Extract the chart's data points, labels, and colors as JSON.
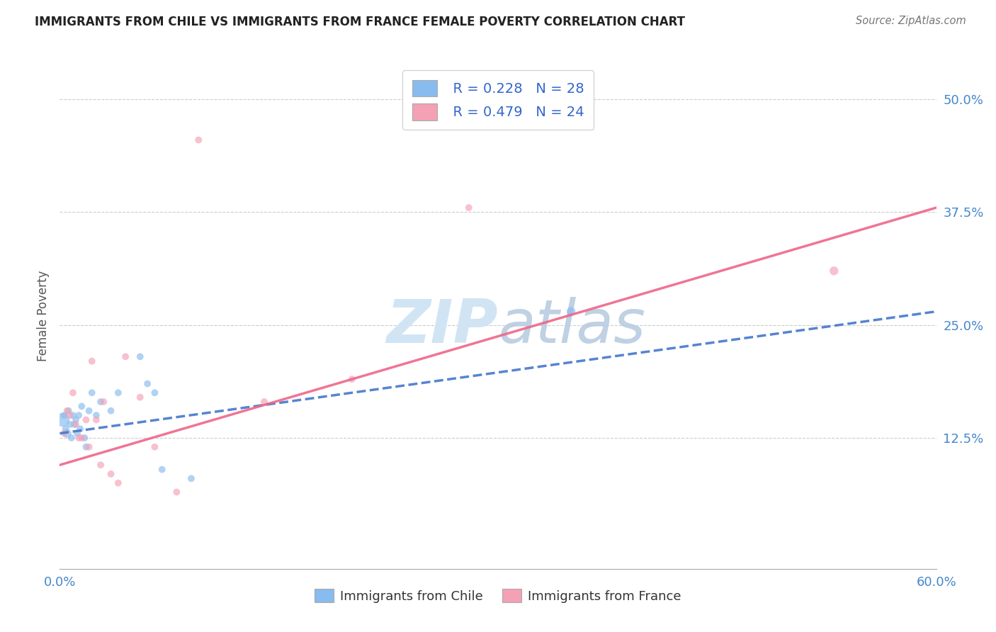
{
  "title": "IMMIGRANTS FROM CHILE VS IMMIGRANTS FROM FRANCE FEMALE POVERTY CORRELATION CHART",
  "source_text": "Source: ZipAtlas.com",
  "ylabel": "Female Poverty",
  "xlim": [
    0.0,
    0.6
  ],
  "ylim": [
    -0.02,
    0.54
  ],
  "xticks": [
    0.0,
    0.1,
    0.2,
    0.3,
    0.4,
    0.5,
    0.6
  ],
  "xtick_labels": [
    "0.0%",
    "",
    "",
    "",
    "",
    "",
    "60.0%"
  ],
  "ytick_positions": [
    0.125,
    0.25,
    0.375,
    0.5
  ],
  "ytick_labels": [
    "12.5%",
    "25.0%",
    "37.5%",
    "50.0%"
  ],
  "background_color": "#ffffff",
  "grid_color": "#cccccc",
  "chile_color": "#88bbee",
  "france_color": "#f4a0b5",
  "chile_line_color": "#4477cc",
  "france_line_color": "#ee6688",
  "watermark_color": "#d0e4f4",
  "legend_R_chile": "R = 0.228",
  "legend_N_chile": "N = 28",
  "legend_R_france": "R = 0.479",
  "legend_N_france": "N = 24",
  "chile_x": [
    0.002,
    0.003,
    0.004,
    0.005,
    0.006,
    0.007,
    0.008,
    0.009,
    0.01,
    0.011,
    0.012,
    0.013,
    0.014,
    0.015,
    0.017,
    0.018,
    0.02,
    0.022,
    0.025,
    0.028,
    0.035,
    0.04,
    0.055,
    0.06,
    0.065,
    0.07,
    0.09,
    0.35
  ],
  "chile_y": [
    0.145,
    0.15,
    0.135,
    0.13,
    0.155,
    0.14,
    0.125,
    0.15,
    0.14,
    0.145,
    0.13,
    0.15,
    0.135,
    0.16,
    0.125,
    0.115,
    0.155,
    0.175,
    0.15,
    0.165,
    0.155,
    0.175,
    0.215,
    0.185,
    0.175,
    0.09,
    0.08,
    0.265
  ],
  "chile_sizes": [
    200,
    50,
    50,
    80,
    50,
    50,
    50,
    50,
    50,
    50,
    50,
    50,
    50,
    50,
    50,
    50,
    50,
    50,
    50,
    50,
    50,
    50,
    50,
    50,
    50,
    50,
    50,
    80
  ],
  "france_x": [
    0.003,
    0.005,
    0.007,
    0.009,
    0.011,
    0.013,
    0.015,
    0.018,
    0.02,
    0.022,
    0.025,
    0.028,
    0.03,
    0.035,
    0.04,
    0.045,
    0.055,
    0.065,
    0.08,
    0.095,
    0.14,
    0.2,
    0.28,
    0.53
  ],
  "france_y": [
    0.13,
    0.155,
    0.15,
    0.175,
    0.14,
    0.125,
    0.125,
    0.145,
    0.115,
    0.21,
    0.145,
    0.095,
    0.165,
    0.085,
    0.075,
    0.215,
    0.17,
    0.115,
    0.065,
    0.455,
    0.165,
    0.19,
    0.38,
    0.31
  ],
  "france_sizes": [
    50,
    50,
    50,
    50,
    50,
    50,
    50,
    50,
    50,
    50,
    50,
    50,
    50,
    50,
    50,
    50,
    50,
    50,
    50,
    50,
    50,
    50,
    50,
    80
  ],
  "chile_line_x0": 0.0,
  "chile_line_x1": 0.6,
  "chile_line_y0": 0.13,
  "chile_line_y1": 0.265,
  "france_line_x0": 0.0,
  "france_line_x1": 0.6,
  "france_line_y0": 0.095,
  "france_line_y1": 0.38
}
